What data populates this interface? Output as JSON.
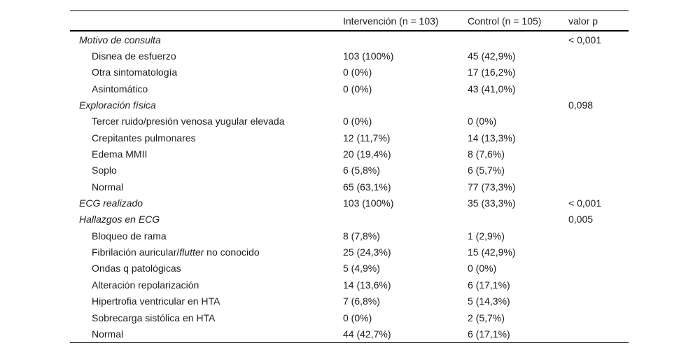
{
  "header": {
    "col_label": "",
    "col_intervention": "Intervención (n = 103)",
    "col_control": "Control (n = 105)",
    "col_p": "valor p"
  },
  "rows": [
    {
      "label": "Motivo de consulta",
      "kind": "section",
      "intervention": "",
      "control": "",
      "p": "< 0,001"
    },
    {
      "label": "Disnea de esfuerzo",
      "kind": "item",
      "intervention": "103 (100%)",
      "control": "45 (42,9%)",
      "p": ""
    },
    {
      "label": "Otra sintomatología",
      "kind": "item",
      "intervention": "0 (0%)",
      "control": "17 (16,2%)",
      "p": ""
    },
    {
      "label": "Asintomático",
      "kind": "item",
      "intervention": "0 (0%)",
      "control": "43 (41,0%)",
      "p": ""
    },
    {
      "label": "Exploración física",
      "kind": "section",
      "intervention": "",
      "control": "",
      "p": "0,098"
    },
    {
      "label": "Tercer ruido/presión venosa yugular elevada",
      "kind": "item",
      "intervention": "0 (0%)",
      "control": "0 (0%)",
      "p": ""
    },
    {
      "label": "Crepitantes pulmonares",
      "kind": "item",
      "intervention": "12 (11,7%)",
      "control": "14 (13,3%)",
      "p": ""
    },
    {
      "label": "Edema MMII",
      "kind": "item",
      "intervention": "20 (19,4%)",
      "control": "8 (7,6%)",
      "p": ""
    },
    {
      "label": "Soplo",
      "kind": "item",
      "intervention": "6 (5,8%)",
      "control": "6 (5,7%)",
      "p": ""
    },
    {
      "label": "Normal",
      "kind": "item",
      "intervention": "65 (63,1%)",
      "control": "77 (73,3%)",
      "p": ""
    },
    {
      "label": "ECG realizado",
      "kind": "section",
      "intervention": "103 (100%)",
      "control": "35 (33,3%)",
      "p": "< 0,001"
    },
    {
      "label": "Hallazgos en ECG",
      "kind": "section",
      "intervention": "",
      "control": "",
      "p": "0,005"
    },
    {
      "label": "Bloqueo de rama",
      "kind": "item",
      "intervention": "8 (7,8%)",
      "control": "1 (2,9%)",
      "p": ""
    },
    {
      "label": "Fibrilación auricular/flutter no conocido",
      "italic_segment": "flutter",
      "kind": "item",
      "intervention": "25 (24,3%)",
      "control": "15 (42,9%)",
      "p": ""
    },
    {
      "label": "Ondas q patológicas",
      "kind": "item",
      "intervention": "5 (4,9%)",
      "control": "0 (0%)",
      "p": ""
    },
    {
      "label": "Alteración repolarización",
      "kind": "item",
      "intervention": "14 (13,6%)",
      "control": "6 (17,1%)",
      "p": ""
    },
    {
      "label": "Hipertrofia ventricular en HTA",
      "kind": "item",
      "intervention": "7 (6,8%)",
      "control": "5 (14,3%)",
      "p": ""
    },
    {
      "label": "Sobrecarga sistólica en HTA",
      "kind": "item",
      "intervention": "0 (0%)",
      "control": "2 (5,7%)",
      "p": ""
    },
    {
      "label": "Normal",
      "kind": "item",
      "intervention": "44 (42,7%)",
      "control": "6 (17,1%)",
      "p": ""
    }
  ],
  "colors": {
    "text": "#1c1c1c",
    "rule": "#000000",
    "background": "#ffffff"
  }
}
